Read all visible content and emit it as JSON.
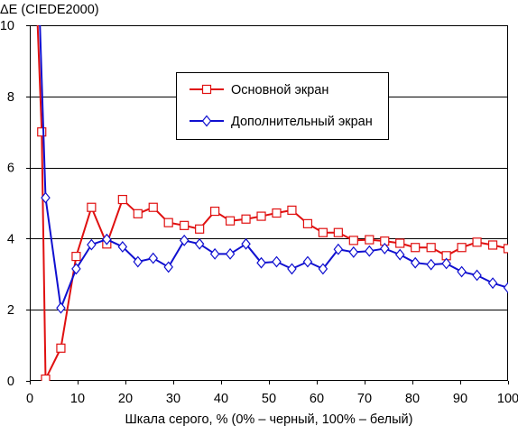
{
  "chart_data": {
    "type": "line",
    "ylabel": "ΔE (CIEDE2000)",
    "xlabel": "Шкала серого, % (0% – черный, 100% – белый)",
    "xlim": [
      0,
      100
    ],
    "ylim": [
      0,
      10
    ],
    "x_ticks": [
      "0",
      "10",
      "20",
      "30",
      "40",
      "50",
      "60",
      "70",
      "80",
      "90",
      "100"
    ],
    "y_ticks": [
      "0",
      "2",
      "4",
      "6",
      "8",
      "10"
    ],
    "grid": "horizontal",
    "legend_position": "upper-center",
    "series": [
      {
        "name": "Основной экран",
        "color": "#e01010",
        "marker": "square",
        "points": [
          [
            1.5,
            10.5
          ],
          [
            2.5,
            7.0
          ],
          [
            3.3,
            0.05
          ],
          [
            6.5,
            0.92
          ],
          [
            9.7,
            3.5
          ],
          [
            12.9,
            4.88
          ],
          [
            16.1,
            3.85
          ],
          [
            19.4,
            5.1
          ],
          [
            22.6,
            4.7
          ],
          [
            25.8,
            4.88
          ],
          [
            29.0,
            4.45
          ],
          [
            32.3,
            4.37
          ],
          [
            35.5,
            4.27
          ],
          [
            38.7,
            4.77
          ],
          [
            41.9,
            4.5
          ],
          [
            45.2,
            4.55
          ],
          [
            48.4,
            4.63
          ],
          [
            51.6,
            4.72
          ],
          [
            54.8,
            4.8
          ],
          [
            58.1,
            4.42
          ],
          [
            61.3,
            4.17
          ],
          [
            64.5,
            4.17
          ],
          [
            67.7,
            3.95
          ],
          [
            71.0,
            3.97
          ],
          [
            74.2,
            3.93
          ],
          [
            77.4,
            3.87
          ],
          [
            80.6,
            3.75
          ],
          [
            83.9,
            3.75
          ],
          [
            87.1,
            3.52
          ],
          [
            90.3,
            3.75
          ],
          [
            93.5,
            3.9
          ],
          [
            96.8,
            3.82
          ],
          [
            100.0,
            3.72
          ]
        ]
      },
      {
        "name": "Дополнительный экран",
        "color": "#1010d0",
        "marker": "diamond",
        "points": [
          [
            2.0,
            10.5
          ],
          [
            3.3,
            5.15
          ],
          [
            6.5,
            2.05
          ],
          [
            9.7,
            3.15
          ],
          [
            12.9,
            3.83
          ],
          [
            16.1,
            3.98
          ],
          [
            19.4,
            3.77
          ],
          [
            22.6,
            3.35
          ],
          [
            25.8,
            3.45
          ],
          [
            29.0,
            3.2
          ],
          [
            32.3,
            3.95
          ],
          [
            35.5,
            3.85
          ],
          [
            38.7,
            3.57
          ],
          [
            41.9,
            3.57
          ],
          [
            45.2,
            3.85
          ],
          [
            48.4,
            3.32
          ],
          [
            51.6,
            3.35
          ],
          [
            54.8,
            3.15
          ],
          [
            58.1,
            3.35
          ],
          [
            61.3,
            3.15
          ],
          [
            64.5,
            3.7
          ],
          [
            67.7,
            3.62
          ],
          [
            71.0,
            3.65
          ],
          [
            74.2,
            3.72
          ],
          [
            77.4,
            3.55
          ],
          [
            80.6,
            3.32
          ],
          [
            83.9,
            3.27
          ],
          [
            87.1,
            3.3
          ],
          [
            90.3,
            3.07
          ],
          [
            93.5,
            2.97
          ],
          [
            96.8,
            2.75
          ],
          [
            100.0,
            2.62
          ]
        ]
      }
    ]
  }
}
